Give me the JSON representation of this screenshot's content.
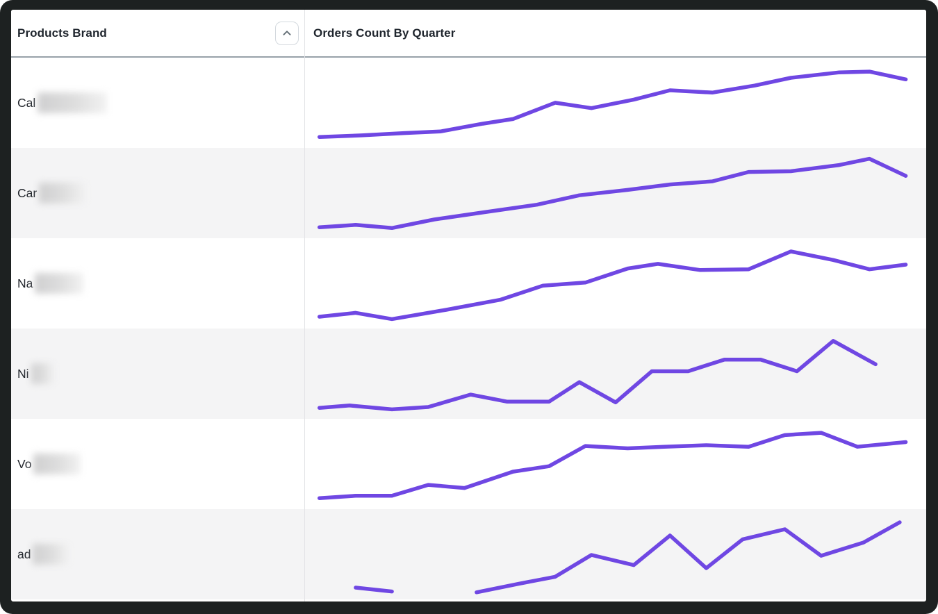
{
  "accent_color": "#6f47e3",
  "frame_color": "#1d2121",
  "header": {
    "products_brand_label": "Products Brand",
    "orders_count_label": "Orders Count By Quarter",
    "sort_icon": "chevron-up-icon",
    "sort_direction": "ascending"
  },
  "rows": [
    {
      "brand_visible_text": "Cal",
      "brand_redacted": true,
      "redaction_width": 100,
      "spark": {
        "type": "line",
        "segments": [
          [
            [
              1,
              7
            ],
            [
              8,
              9
            ],
            [
              15,
              12
            ],
            [
              21,
              14
            ],
            [
              28,
              24
            ],
            [
              33,
              30
            ],
            [
              40,
              51
            ],
            [
              46,
              44
            ],
            [
              53,
              55
            ],
            [
              59,
              67
            ],
            [
              66,
              64
            ],
            [
              73,
              73
            ],
            [
              79,
              83
            ],
            [
              87,
              90
            ],
            [
              92,
              91
            ],
            [
              98,
              81
            ]
          ]
        ]
      }
    },
    {
      "brand_visible_text": "Car",
      "brand_redacted": true,
      "redaction_width": 67,
      "spark": {
        "type": "line",
        "segments": [
          [
            [
              1,
              7
            ],
            [
              7,
              10
            ],
            [
              13,
              6
            ],
            [
              20,
              17
            ],
            [
              28,
              26
            ],
            [
              37,
              36
            ],
            [
              44,
              48
            ],
            [
              52,
              55
            ],
            [
              59,
              62
            ],
            [
              66,
              66
            ],
            [
              72,
              78
            ],
            [
              79,
              79
            ],
            [
              87,
              87
            ],
            [
              92,
              95
            ],
            [
              98,
              73
            ]
          ]
        ]
      }
    },
    {
      "brand_visible_text": "Na",
      "brand_redacted": true,
      "redaction_width": 70,
      "spark": {
        "type": "line",
        "segments": [
          [
            [
              1,
              8
            ],
            [
              7,
              13
            ],
            [
              13,
              5
            ],
            [
              22,
              17
            ],
            [
              31,
              30
            ],
            [
              38,
              48
            ],
            [
              45,
              52
            ],
            [
              52,
              70
            ],
            [
              57,
              76
            ],
            [
              64,
              68
            ],
            [
              72,
              69
            ],
            [
              79,
              92
            ],
            [
              86,
              81
            ],
            [
              92,
              69
            ],
            [
              98,
              75
            ]
          ]
        ]
      }
    },
    {
      "brand_visible_text": "Ni",
      "brand_redacted": true,
      "redaction_width": 33,
      "spark": {
        "type": "line",
        "segments": [
          [
            [
              1,
              7
            ],
            [
              6,
              10
            ],
            [
              13,
              5
            ],
            [
              19,
              8
            ],
            [
              26,
              24
            ],
            [
              32,
              15
            ],
            [
              39,
              15
            ],
            [
              44,
              40
            ],
            [
              50,
              14
            ],
            [
              56,
              54
            ],
            [
              62,
              54
            ],
            [
              68,
              69
            ],
            [
              74,
              69
            ],
            [
              80,
              54
            ],
            [
              86,
              93
            ],
            [
              93,
              63
            ]
          ]
        ]
      }
    },
    {
      "brand_visible_text": "Vo",
      "brand_redacted": true,
      "redaction_width": 68,
      "spark": {
        "type": "line",
        "segments": [
          [
            [
              1,
              7
            ],
            [
              7,
              10
            ],
            [
              13,
              10
            ],
            [
              19,
              24
            ],
            [
              25,
              20
            ],
            [
              33,
              41
            ],
            [
              39,
              48
            ],
            [
              45,
              74
            ],
            [
              52,
              71
            ],
            [
              58,
              73
            ],
            [
              65,
              75
            ],
            [
              72,
              73
            ],
            [
              78,
              88
            ],
            [
              84,
              91
            ],
            [
              90,
              73
            ],
            [
              98,
              79
            ]
          ]
        ]
      }
    },
    {
      "brand_visible_text": "ad",
      "brand_redacted": true,
      "redaction_width": 52,
      "spark": {
        "type": "line",
        "segments": [
          [
            [
              7,
              8
            ],
            [
              13,
              3
            ]
          ],
          [
            [
              27,
              2
            ],
            [
              34,
              13
            ],
            [
              40,
              22
            ],
            [
              46,
              50
            ],
            [
              53,
              37
            ],
            [
              59,
              75
            ],
            [
              65,
              33
            ],
            [
              71,
              70
            ],
            [
              78,
              83
            ],
            [
              84,
              49
            ],
            [
              91,
              66
            ],
            [
              97,
              92
            ]
          ]
        ]
      }
    }
  ]
}
